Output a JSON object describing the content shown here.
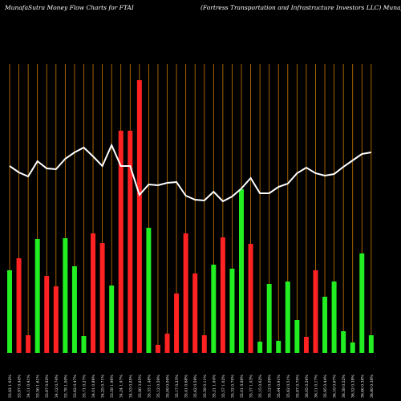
{
  "chart_data": {
    "type": "bar",
    "title": "MunafaSutra  Money Flow  Charts for FTAI",
    "subtitle": "(Fortress Transportation  and Infrastructure   Investors LLC) MunafaSutra.com",
    "categories": [
      "33.82 1.92%",
      "33.97 0.44%",
      "34.11 0.41%",
      "33.56 1.61%",
      "33.87 0.92%",
      "34.12 0.74%",
      "33.78 1.00%",
      "33.62 0.47%",
      "33.71 0.27%",
      "34.01 0.89%",
      "34.25 0.71%",
      "33.58 1.96%",
      "34.24 1.97%",
      "34.53 0.85%",
      "35.86 3.85%",
      "35.33 1.48%",
      "35.12 0.59%",
      "35.09 0.09%",
      "35.17 0.23%",
      "35.41 0.68%",
      "35.62 0.59%",
      "35.58 0.11%",
      "35.21 1.04%",
      "35.57 1.02%",
      "35.32 0.70%",
      "35.01 0.88%",
      "35.37 1.03%",
      "35.15 0.62%",
      "35.12 0.09%",
      "35.44 0.91%",
      "35.62 0.51%",
      "35.87 0.70%",
      "36.05 0.50%",
      "36.11 0.17%",
      "35.95 0.44%",
      "36.19 0.67%",
      "36.38 0.52%",
      "36.52 0.38%",
      "36.66 0.38%",
      "36.80 0.38%"
    ],
    "values": [
      103,
      118,
      22,
      142,
      96,
      83,
      143,
      108,
      21,
      149,
      137,
      84,
      277,
      277,
      340,
      156,
      10,
      24,
      74,
      149,
      99,
      22,
      110,
      144,
      105,
      204,
      136,
      14,
      86,
      15,
      89,
      41,
      20,
      103,
      70,
      89,
      27,
      13,
      124,
      22
    ],
    "colors": [
      "#22ee22",
      "#ff2222",
      "#ff2222",
      "#22ee22",
      "#ff2222",
      "#ff2222",
      "#22ee22",
      "#22ee22",
      "#22ee22",
      "#ff2222",
      "#ff2222",
      "#22ee22",
      "#ff2222",
      "#ff2222",
      "#ff2222",
      "#22ee22",
      "#ff2222",
      "#ff2222",
      "#ff2222",
      "#ff2222",
      "#ff2222",
      "#ff2222",
      "#22ee22",
      "#ff2222",
      "#22ee22",
      "#22ee22",
      "#ff2222",
      "#22ee22",
      "#22ee22",
      "#22ee22",
      "#22ee22",
      "#22ee22",
      "#ff2222",
      "#ff2222",
      "#22ee22",
      "#22ee22",
      "#22ee22",
      "#22ee22",
      "#22ee22",
      "#22ee22"
    ],
    "line": {
      "color": "#ffffff",
      "values": [
        233,
        225,
        220,
        239,
        230,
        229,
        242,
        250,
        256,
        245,
        233,
        259,
        233,
        233,
        197,
        210,
        209,
        212,
        213,
        196,
        191,
        190,
        201,
        189,
        195,
        205,
        218,
        199,
        199,
        207,
        211,
        224,
        231,
        224,
        221,
        223,
        232,
        240,
        248,
        250
      ]
    },
    "ylim": [
      0,
      340
    ],
    "gridline_color": "#cc7a00"
  }
}
